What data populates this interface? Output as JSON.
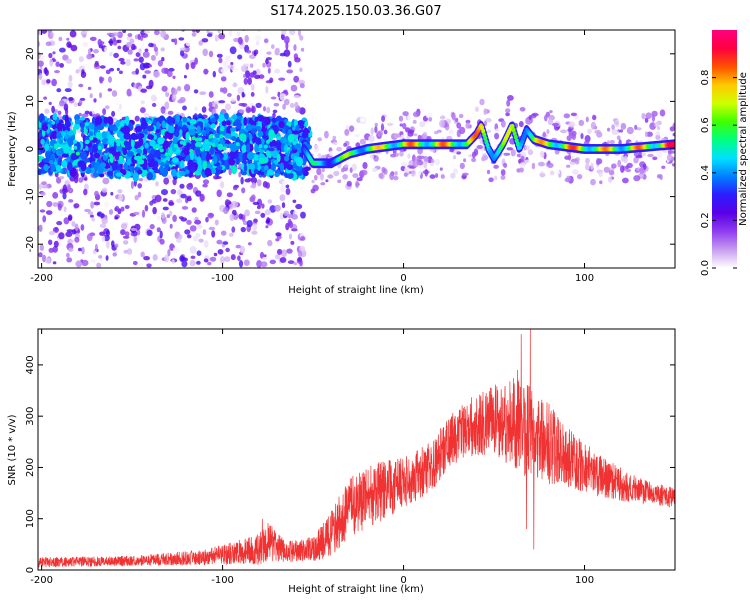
{
  "title": "S174.2025.150.03.36.G07",
  "chart_data": [
    {
      "type": "heatmap",
      "xlabel": "Height of straight line (km)",
      "ylabel": "Frequency (Hz)",
      "xlim": [
        -202,
        150
      ],
      "ylim": [
        -25,
        25
      ],
      "xticks": [
        -200,
        -100,
        0,
        100
      ],
      "yticks": [
        -20,
        -10,
        0,
        10,
        20
      ],
      "colorbar": {
        "label": "Normalized spectral amplitude",
        "range": [
          0,
          1
        ],
        "ticks": [
          0.0,
          0.2,
          0.4,
          0.6,
          0.8
        ],
        "colors": [
          "#ffffff",
          "#c79df0",
          "#8f3cf0",
          "#5a00e6",
          "#2d1cff",
          "#0080ff",
          "#00e0ff",
          "#00ff80",
          "#40ff00",
          "#d0ff00",
          "#ffc800",
          "#ff5000",
          "#ff0040",
          "#ff0080"
        ]
      },
      "ridge": [
        {
          "x": -200,
          "f": 1
        },
        {
          "x": -150,
          "f": 0
        },
        {
          "x": -100,
          "f": 1
        },
        {
          "x": -55,
          "f": 0
        },
        {
          "x": -50,
          "f": -3
        },
        {
          "x": -40,
          "f": -3
        },
        {
          "x": -30,
          "f": -1
        },
        {
          "x": -20,
          "f": 0
        },
        {
          "x": 0,
          "f": 1
        },
        {
          "x": 20,
          "f": 1
        },
        {
          "x": 35,
          "f": 1
        },
        {
          "x": 40,
          "f": 3
        },
        {
          "x": 43,
          "f": 5
        },
        {
          "x": 47,
          "f": 0
        },
        {
          "x": 50,
          "f": -2
        },
        {
          "x": 55,
          "f": 1
        },
        {
          "x": 60,
          "f": 5
        },
        {
          "x": 64,
          "f": 0
        },
        {
          "x": 68,
          "f": 4
        },
        {
          "x": 72,
          "f": 2
        },
        {
          "x": 80,
          "f": 1
        },
        {
          "x": 100,
          "f": 0
        },
        {
          "x": 120,
          "f": 0
        },
        {
          "x": 150,
          "f": 1
        }
      ],
      "amplitude_profile": [
        {
          "x": -200,
          "a": 0.45
        },
        {
          "x": -60,
          "a": 0.45
        },
        {
          "x": -50,
          "a": 0.55
        },
        {
          "x": -20,
          "a": 0.75
        },
        {
          "x": 0,
          "a": 0.85
        },
        {
          "x": 40,
          "a": 0.85
        },
        {
          "x": 60,
          "a": 0.7
        },
        {
          "x": 90,
          "a": 0.9
        },
        {
          "x": 120,
          "a": 0.8
        },
        {
          "x": 150,
          "a": 0.95
        }
      ]
    },
    {
      "type": "line",
      "xlabel": "Height of straight line (km)",
      "ylabel": "SNR (10 * v/v)",
      "xlim": [
        -202,
        150
      ],
      "ylim": [
        0,
        470
      ],
      "xticks": [
        -200,
        -100,
        0,
        100
      ],
      "yticks": [
        0,
        100,
        200,
        300,
        400
      ],
      "color": "#f03232",
      "envelope": [
        {
          "x": -200,
          "mean": 15,
          "noise": 10
        },
        {
          "x": -150,
          "mean": 18,
          "noise": 10
        },
        {
          "x": -110,
          "mean": 25,
          "noise": 15
        },
        {
          "x": -80,
          "mean": 40,
          "noise": 30
        },
        {
          "x": -75,
          "mean": 55,
          "noise": 40
        },
        {
          "x": -65,
          "mean": 35,
          "noise": 20
        },
        {
          "x": -50,
          "mean": 40,
          "noise": 25
        },
        {
          "x": -40,
          "mean": 70,
          "noise": 50
        },
        {
          "x": -30,
          "mean": 120,
          "noise": 60
        },
        {
          "x": -15,
          "mean": 150,
          "noise": 60
        },
        {
          "x": 0,
          "mean": 170,
          "noise": 50
        },
        {
          "x": 15,
          "mean": 200,
          "noise": 50
        },
        {
          "x": 25,
          "mean": 250,
          "noise": 50
        },
        {
          "x": 40,
          "mean": 285,
          "noise": 60
        },
        {
          "x": 55,
          "mean": 290,
          "noise": 80
        },
        {
          "x": 65,
          "mean": 280,
          "noise": 100
        },
        {
          "x": 75,
          "mean": 260,
          "noise": 90
        },
        {
          "x": 90,
          "mean": 220,
          "noise": 60
        },
        {
          "x": 110,
          "mean": 180,
          "noise": 40
        },
        {
          "x": 130,
          "mean": 155,
          "noise": 25
        },
        {
          "x": 150,
          "mean": 140,
          "noise": 20
        }
      ],
      "spikes": [
        {
          "x": 65,
          "y": 460
        },
        {
          "x": 70,
          "y": 470
        },
        {
          "x": 72,
          "y": 40
        },
        {
          "x": 68,
          "y": 80
        },
        {
          "x": 63,
          "y": 390
        },
        {
          "x": -78,
          "y": 100
        }
      ]
    }
  ]
}
